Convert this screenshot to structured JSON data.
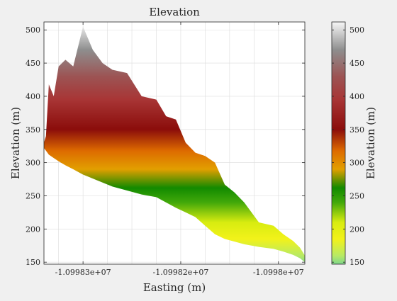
{
  "chart_data": {
    "type": "area",
    "title": "Elevation",
    "xlabel": "Easting (m)",
    "ylabel": "Elevation (m)",
    "colorbar_label": "Elevation (m)",
    "grid": true,
    "xlim": [
      -10998340,
      -10998073
    ],
    "ylim": [
      147,
      512
    ],
    "x_ticks": [
      {
        "value": -10998300,
        "label": "-1.09983e+07"
      },
      {
        "value": -10998200,
        "label": "-1.09982e+07"
      },
      {
        "value": -10998100,
        "label": "-1.0998e+07"
      }
    ],
    "x_minor_ticks": [
      -10998325,
      -10998275,
      -10998250,
      -10998225,
      -10998175,
      -10998150,
      -10998125
    ],
    "y_ticks": [
      150,
      200,
      250,
      300,
      350,
      400,
      450,
      500
    ],
    "colorbar_ticks": [
      150,
      200,
      250,
      300,
      350,
      400,
      450,
      500
    ],
    "clim": [
      147,
      512
    ],
    "colormap": [
      {
        "v": 147,
        "c": "#7fd68c"
      },
      {
        "v": 160,
        "c": "#b8ea64"
      },
      {
        "v": 185,
        "c": "#f2f21a"
      },
      {
        "v": 210,
        "c": "#d8ec10"
      },
      {
        "v": 240,
        "c": "#42a80a"
      },
      {
        "v": 262,
        "c": "#128a00"
      },
      {
        "v": 290,
        "c": "#e29f00"
      },
      {
        "v": 318,
        "c": "#dd6a00"
      },
      {
        "v": 350,
        "c": "#8b0d0b"
      },
      {
        "v": 395,
        "c": "#a83535"
      },
      {
        "v": 430,
        "c": "#9c5454"
      },
      {
        "v": 470,
        "c": "#8e8e8e"
      },
      {
        "v": 512,
        "c": "#f7f7f7"
      }
    ],
    "surface_profile": {
      "x": [
        -10998340,
        -10998338,
        -10998335,
        -10998330,
        -10998325,
        -10998318,
        -10998310,
        -10998300,
        -10998290,
        -10998280,
        -10998270,
        -10998255,
        -10998240,
        -10998225,
        -10998215,
        -10998205,
        -10998195,
        -10998185,
        -10998175,
        -10998165,
        -10998155,
        -10998145,
        -10998135,
        -10998120,
        -10998105,
        -10998095,
        -10998085,
        -10998078,
        -10998073
      ],
      "top": [
        330,
        340,
        418,
        400,
        445,
        455,
        445,
        505,
        470,
        450,
        440,
        435,
        400,
        395,
        370,
        365,
        330,
        315,
        310,
        300,
        267,
        255,
        240,
        210,
        205,
        192,
        182,
        172,
        160
      ],
      "bottom": [
        322,
        318,
        312,
        307,
        302,
        296,
        290,
        282,
        276,
        270,
        264,
        258,
        252,
        248,
        240,
        232,
        225,
        218,
        205,
        192,
        185,
        181,
        177,
        173,
        170,
        166,
        161,
        156,
        150
      ]
    }
  }
}
